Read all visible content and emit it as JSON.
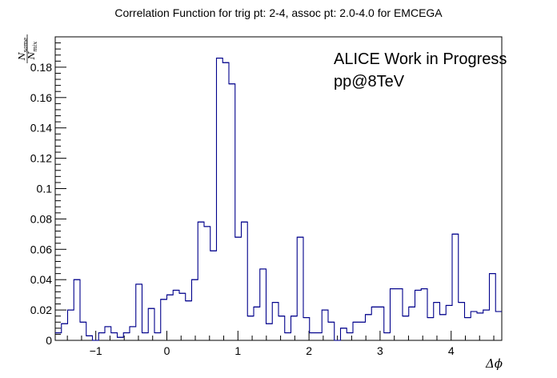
{
  "chart_data": {
    "type": "histogram",
    "title": "Correlation Function for trig pt: 2-4, assoc pt: 2.0-4.0 for EMCEGA",
    "xlabel": "Δϕ",
    "ylabel": {
      "numerator": "N",
      "numerator_sub": "same",
      "denominator": "N",
      "denominator_sub": "mix"
    },
    "annotations": [
      "ALICE Work in Progress",
      "pp@8TeV"
    ],
    "xlim": [
      -1.5708,
      4.7124
    ],
    "ylim": [
      0,
      0.2
    ],
    "bin_count": 72,
    "x_ticks": [
      -1,
      0,
      1,
      2,
      3,
      4
    ],
    "x_tick_labels": [
      "−1",
      "0",
      "1",
      "2",
      "3",
      "4"
    ],
    "y_ticks": [
      0,
      0.02,
      0.04,
      0.06,
      0.08,
      0.1,
      0.12,
      0.14,
      0.16,
      0.18
    ],
    "y_tick_labels": [
      "0",
      "0.02",
      "0.04",
      "0.06",
      "0.08",
      "0.1",
      "0.12",
      "0.14",
      "0.16",
      "0.18"
    ],
    "line_color": "#00008b",
    "values": [
      0.005,
      0.011,
      0.02,
      0.04,
      0.012,
      0.003,
      0.0,
      0.005,
      0.009,
      0.005,
      0.002,
      0.005,
      0.009,
      0.037,
      0.005,
      0.021,
      0.005,
      0.027,
      0.03,
      0.033,
      0.031,
      0.026,
      0.04,
      0.078,
      0.075,
      0.059,
      0.186,
      0.183,
      0.169,
      0.068,
      0.078,
      0.016,
      0.022,
      0.047,
      0.011,
      0.025,
      0.016,
      0.005,
      0.016,
      0.068,
      0.015,
      0.005,
      0.005,
      0.02,
      0.012,
      0.0,
      0.008,
      0.005,
      0.012,
      0.012,
      0.017,
      0.022,
      0.022,
      0.005,
      0.034,
      0.034,
      0.016,
      0.022,
      0.033,
      0.034,
      0.015,
      0.025,
      0.017,
      0.023,
      0.07,
      0.025,
      0.015,
      0.019,
      0.018,
      0.02,
      0.044,
      0.019
    ]
  }
}
